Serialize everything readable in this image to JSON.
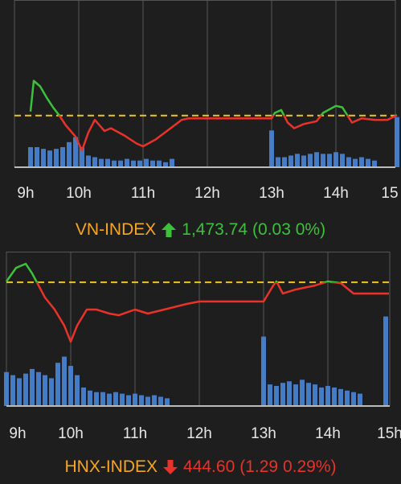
{
  "chart_data": [
    {
      "type": "line",
      "title": "VN-INDEX",
      "summary": {
        "price": "1,473.74",
        "change": "(0.03 0%)",
        "direction": "up"
      },
      "title_color": "#f5a623",
      "up_color": "#3cc13b",
      "down_color": "#e8322a",
      "reference_color": "#f0c419",
      "volume_color": "#4a86d8",
      "xlim": [
        9,
        15
      ],
      "xticks": [
        {
          "value": 9,
          "label": "9h"
        },
        {
          "value": 10,
          "label": "10h"
        },
        {
          "value": 11,
          "label": "11h"
        },
        {
          "value": 12,
          "label": "12h"
        },
        {
          "value": 13,
          "label": "13h"
        },
        {
          "value": 14,
          "label": "14h"
        },
        {
          "value": 15,
          "label": "15"
        }
      ],
      "ylim": [
        1470,
        1482
      ],
      "reference": 1473.71,
      "y2lim": [
        0,
        100
      ],
      "grid": true,
      "price": {
        "x": [
          9.25,
          9.3,
          9.4,
          9.5,
          9.6,
          9.7,
          9.8,
          9.95,
          10.05,
          10.15,
          10.25,
          10.4,
          10.5,
          10.7,
          10.9,
          11.0,
          11.2,
          11.4,
          11.6,
          11.7,
          13.0,
          13.05,
          13.15,
          13.25,
          13.35,
          13.5,
          13.7,
          13.8,
          14.0,
          14.1,
          14.25,
          14.4,
          14.6,
          14.8,
          14.95
        ],
        "values": [
          1474.0,
          1476.2,
          1475.8,
          1475.0,
          1474.3,
          1473.7,
          1473.0,
          1472.2,
          1471.2,
          1472.5,
          1473.4,
          1472.6,
          1472.8,
          1472.3,
          1471.7,
          1471.5,
          1472.0,
          1472.7,
          1473.4,
          1473.5,
          1473.5,
          1473.9,
          1474.1,
          1473.2,
          1472.8,
          1473.1,
          1473.3,
          1473.9,
          1474.4,
          1474.3,
          1473.2,
          1473.5,
          1473.4,
          1473.4,
          1473.74
        ]
      },
      "volume": {
        "x": [
          9.25,
          9.35,
          9.45,
          9.55,
          9.65,
          9.75,
          9.85,
          9.95,
          10.05,
          10.15,
          10.25,
          10.35,
          10.45,
          10.55,
          10.65,
          10.75,
          10.85,
          10.95,
          11.05,
          11.15,
          11.25,
          11.35,
          11.45,
          13.0,
          13.1,
          13.2,
          13.3,
          13.4,
          13.5,
          13.6,
          13.7,
          13.8,
          13.9,
          14.0,
          14.1,
          14.2,
          14.3,
          14.4,
          14.5,
          14.6,
          14.95
        ],
        "values": [
          12,
          12,
          11,
          10,
          11,
          12,
          15,
          18,
          12,
          7,
          6,
          5,
          5,
          4,
          4,
          5,
          4,
          4,
          5,
          4,
          4,
          3,
          5,
          22,
          6,
          6,
          7,
          8,
          7,
          8,
          9,
          8,
          8,
          9,
          8,
          6,
          5,
          6,
          5,
          4,
          30
        ]
      }
    },
    {
      "type": "line",
      "title": "HNX-INDEX",
      "summary": {
        "price": "444.60",
        "change": "(1.29 0.29%)",
        "direction": "down"
      },
      "title_color": "#f5a623",
      "up_color": "#3cc13b",
      "down_color": "#e8322a",
      "reference_color": "#f0c419",
      "volume_color": "#4a86d8",
      "xlim": [
        9,
        15
      ],
      "xticks": [
        {
          "value": 9,
          "label": "9h"
        },
        {
          "value": 10,
          "label": "10h"
        },
        {
          "value": 11,
          "label": "11h"
        },
        {
          "value": 12,
          "label": "12h"
        },
        {
          "value": 13,
          "label": "13h"
        },
        {
          "value": 14,
          "label": "14h"
        },
        {
          "value": 15,
          "label": "15h"
        }
      ],
      "ylim": [
        431.7,
        449.4
      ],
      "reference": 445.89,
      "y2lim": [
        0,
        100
      ],
      "grid": true,
      "price": {
        "x": [
          9.0,
          9.15,
          9.3,
          9.4,
          9.5,
          9.6,
          9.75,
          9.9,
          10.0,
          10.1,
          10.25,
          10.4,
          10.6,
          10.75,
          11.0,
          11.2,
          11.5,
          11.8,
          12.0,
          13.0,
          13.15,
          13.2,
          13.3,
          13.5,
          13.8,
          14.0,
          14.2,
          14.4,
          14.6,
          14.95
        ],
        "values": [
          445.98,
          447.55,
          448.01,
          446.9,
          445.52,
          444.14,
          442.76,
          440.92,
          439.07,
          440.92,
          442.76,
          442.76,
          442.3,
          442.11,
          442.76,
          442.3,
          442.85,
          443.4,
          443.68,
          443.68,
          445.52,
          445.98,
          444.6,
          445.06,
          445.52,
          445.98,
          445.8,
          444.6,
          444.6,
          444.6
        ]
      },
      "volume": {
        "x": [
          9.0,
          9.1,
          9.2,
          9.3,
          9.4,
          9.5,
          9.6,
          9.7,
          9.8,
          9.9,
          10.0,
          10.1,
          10.2,
          10.3,
          10.4,
          10.5,
          10.6,
          10.7,
          10.8,
          10.9,
          11.0,
          11.1,
          11.2,
          11.3,
          11.4,
          11.5,
          13.0,
          13.1,
          13.2,
          13.3,
          13.4,
          13.5,
          13.6,
          13.7,
          13.8,
          13.9,
          14.0,
          14.1,
          14.2,
          14.3,
          14.4,
          14.5,
          14.9
        ],
        "values": [
          22,
          20,
          18,
          21,
          24,
          22,
          20,
          18,
          28,
          32,
          26,
          20,
          12,
          10,
          9,
          9,
          8,
          9,
          8,
          7,
          8,
          7,
          6,
          7,
          6,
          5,
          45,
          14,
          13,
          15,
          16,
          14,
          17,
          15,
          14,
          12,
          13,
          12,
          11,
          10,
          9,
          8,
          58
        ]
      }
    }
  ]
}
